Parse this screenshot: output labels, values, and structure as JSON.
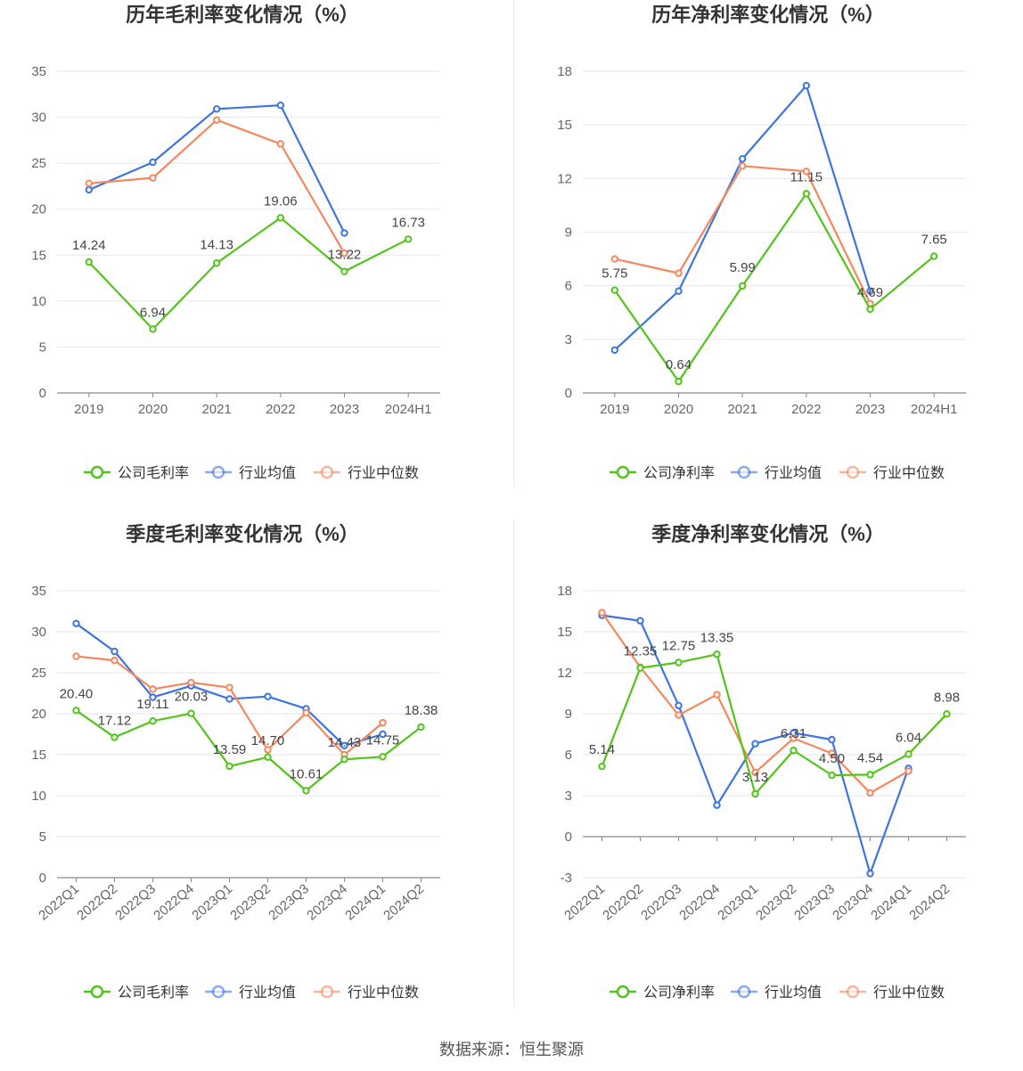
{
  "source_label": "数据来源：恒生聚源",
  "colors": {
    "company": "#52c41a",
    "industry_avg": "#3d74e0",
    "industry_median": "#f5875e",
    "grid": "#e6e6ee",
    "axis": "#8a8a8a"
  },
  "chart_data": [
    {
      "type": "line",
      "title": "历年毛利率变化情况（%）",
      "categories": [
        "2019",
        "2020",
        "2021",
        "2022",
        "2023",
        "2024H1"
      ],
      "ylim": [
        0,
        35
      ],
      "yticks": [
        0,
        5,
        10,
        15,
        20,
        25,
        30,
        35
      ],
      "series": [
        {
          "name": "公司毛利率",
          "role": "company",
          "values": [
            14.24,
            6.94,
            14.13,
            19.06,
            13.22,
            16.73
          ],
          "labels": [
            "14.24",
            "6.94",
            "14.13",
            "19.06",
            "13.22",
            "16.73"
          ]
        },
        {
          "name": "行业均值",
          "role": "industry_avg",
          "values": [
            22.1,
            25.1,
            30.9,
            31.3,
            17.4,
            null
          ]
        },
        {
          "name": "行业中位数",
          "role": "industry_median",
          "values": [
            22.8,
            23.4,
            29.7,
            27.1,
            15.2,
            null
          ]
        }
      ]
    },
    {
      "type": "line",
      "title": "历年净利率变化情况（%）",
      "categories": [
        "2019",
        "2020",
        "2021",
        "2022",
        "2023",
        "2024H1"
      ],
      "ylim": [
        0,
        18
      ],
      "yticks": [
        0,
        3,
        6,
        9,
        12,
        15,
        18
      ],
      "series": [
        {
          "name": "公司净利率",
          "role": "company",
          "values": [
            5.75,
            0.64,
            5.99,
            11.15,
            4.69,
            7.65
          ],
          "labels": [
            "5.75",
            "0.64",
            "5.99",
            "11.15",
            "4.69",
            "7.65"
          ]
        },
        {
          "name": "行业均值",
          "role": "industry_avg",
          "values": [
            2.4,
            5.7,
            13.1,
            17.2,
            5.7,
            null
          ]
        },
        {
          "name": "行业中位数",
          "role": "industry_median",
          "values": [
            7.5,
            6.7,
            12.7,
            12.4,
            5.0,
            null
          ]
        }
      ]
    },
    {
      "type": "line",
      "title": "季度毛利率变化情况（%）",
      "categories": [
        "2022Q1",
        "2022Q2",
        "2022Q3",
        "2022Q4",
        "2023Q1",
        "2023Q2",
        "2023Q3",
        "2023Q4",
        "2024Q1",
        "2024Q2"
      ],
      "ylim": [
        0,
        35
      ],
      "yticks": [
        0,
        5,
        10,
        15,
        20,
        25,
        30,
        35
      ],
      "series": [
        {
          "name": "公司毛利率",
          "role": "company",
          "values": [
            20.4,
            17.12,
            19.11,
            20.03,
            13.59,
            14.7,
            10.61,
            14.43,
            14.75,
            18.38
          ],
          "labels": [
            "20.40",
            "17.12",
            "19.11",
            "20.03",
            "13.59",
            "14.70",
            "10.61",
            "14.43",
            "14.75",
            "18.38"
          ]
        },
        {
          "name": "行业均值",
          "role": "industry_avg",
          "values": [
            31.0,
            27.6,
            22.0,
            23.4,
            21.8,
            22.1,
            20.6,
            16.1,
            17.5,
            null
          ]
        },
        {
          "name": "行业中位数",
          "role": "industry_median",
          "values": [
            27.0,
            26.5,
            23.0,
            23.8,
            23.2,
            15.6,
            20.1,
            15.0,
            18.9,
            null
          ]
        }
      ]
    },
    {
      "type": "line",
      "title": "季度净利率变化情况（%）",
      "categories": [
        "2022Q1",
        "2022Q2",
        "2022Q3",
        "2022Q4",
        "2023Q1",
        "2023Q2",
        "2023Q3",
        "2023Q4",
        "2024Q1",
        "2024Q2"
      ],
      "ylim": [
        -3,
        18
      ],
      "yticks": [
        -3,
        0,
        3,
        6,
        9,
        12,
        15,
        18
      ],
      "series": [
        {
          "name": "公司净利率",
          "role": "company",
          "values": [
            5.14,
            12.35,
            12.75,
            13.35,
            3.13,
            6.31,
            4.5,
            4.54,
            6.04,
            8.98
          ],
          "labels": [
            "5.14",
            "12.35",
            "12.75",
            "13.35",
            "3.13",
            "6.31",
            "4.50",
            "4.54",
            "6.04",
            "8.98"
          ]
        },
        {
          "name": "行业均值",
          "role": "industry_avg",
          "values": [
            16.2,
            15.8,
            9.6,
            2.3,
            6.8,
            7.6,
            7.1,
            -2.7,
            5.0,
            null
          ]
        },
        {
          "name": "行业中位数",
          "role": "industry_median",
          "values": [
            16.4,
            12.4,
            8.9,
            10.4,
            4.7,
            7.2,
            6.1,
            3.2,
            4.8,
            null
          ]
        }
      ]
    }
  ]
}
